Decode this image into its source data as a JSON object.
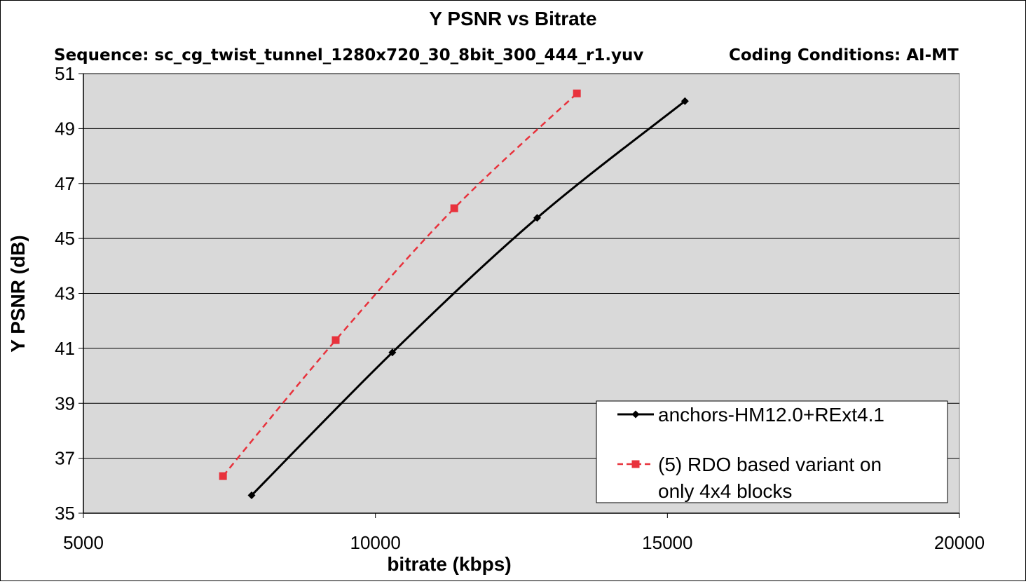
{
  "chart_data": {
    "type": "line",
    "title": "Y PSNR vs Bitrate",
    "subtitle": {
      "sequence": "Sequence: sc_cg_twist_tunnel_1280x720_30_8bit_300_444_r1.yuv",
      "conditions": "Coding Conditions: AI-MT"
    },
    "xlabel": "bitrate (kbps)",
    "ylabel": "Y PSNR (dB)",
    "xlim": [
      5000,
      20000
    ],
    "ylim": [
      35,
      51
    ],
    "xticks": [
      "5000",
      "10000",
      "15000",
      "20000"
    ],
    "yticks": [
      "35",
      "37",
      "39",
      "41",
      "43",
      "45",
      "47",
      "49",
      "51"
    ],
    "grid": "horizontal",
    "plot_background": "#d9d9d9",
    "legend_position": "bottom-right",
    "series": [
      {
        "name": "anchors-HM12.0+RExt4.1",
        "color": "#000000",
        "style": "solid",
        "marker": "diamond",
        "points": [
          [
            7880,
            35.65
          ],
          [
            10290,
            40.85
          ],
          [
            12770,
            45.75
          ],
          [
            15300,
            50.0
          ]
        ]
      },
      {
        "name": "(5) RDO based variant on only 4x4 blocks",
        "legend_lines": [
          "(5) RDO based variant on",
          "only 4x4 blocks"
        ],
        "color": "#e8323c",
        "style": "dashed",
        "marker": "square",
        "points": [
          [
            7390,
            36.35
          ],
          [
            9320,
            41.3
          ],
          [
            11350,
            46.1
          ],
          [
            13450,
            50.28
          ]
        ]
      }
    ]
  }
}
